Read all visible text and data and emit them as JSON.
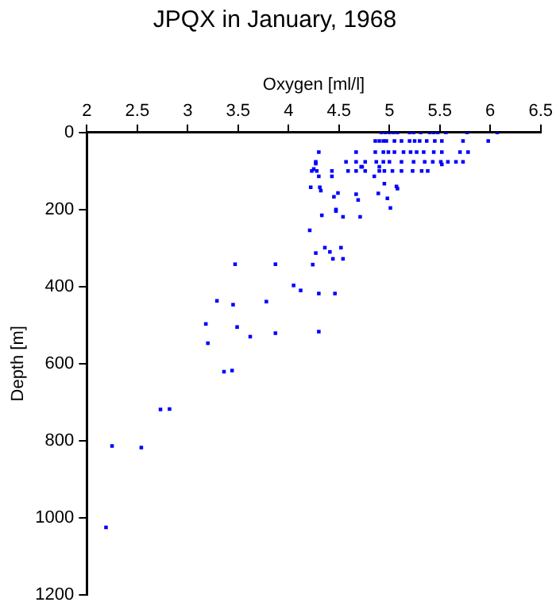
{
  "chart_data": {
    "type": "scatter",
    "title": "JPQX in January, 1968",
    "xlabel": "Oxygen [ml/l]",
    "ylabel": "Depth [m]",
    "xlim": [
      2,
      6.5
    ],
    "xticks": [
      2,
      2.5,
      3,
      3.5,
      4,
      4.5,
      5,
      5.5,
      6,
      6.5
    ],
    "ylim": [
      1200,
      0
    ],
    "yticks": [
      0,
      200,
      400,
      600,
      800,
      1000,
      1200
    ],
    "grid": false,
    "legend": false,
    "marker": "square",
    "series": [
      {
        "color": "#0000ff",
        "x": [
          4.92,
          4.96,
          5.0,
          5.04,
          5.08,
          5.2,
          5.24,
          5.31,
          5.4,
          5.44,
          5.48,
          5.56,
          5.77,
          6.07,
          4.86,
          4.9,
          4.94,
          4.97,
          5.05,
          5.12,
          5.2,
          5.25,
          5.3,
          5.37,
          5.45,
          5.52,
          5.73,
          5.98,
          4.3,
          4.67,
          4.86,
          4.94,
          4.99,
          5.05,
          5.14,
          5.21,
          5.27,
          5.34,
          5.44,
          5.52,
          5.7,
          5.78,
          4.27,
          4.57,
          4.67,
          4.76,
          4.87,
          4.94,
          5.0,
          5.12,
          5.24,
          5.35,
          5.43,
          5.51,
          5.58,
          5.66,
          5.73,
          4.23,
          4.28,
          4.43,
          4.59,
          4.67,
          4.76,
          4.9,
          4.95,
          5.03,
          5.12,
          5.23,
          5.32,
          5.38,
          4.3,
          4.85,
          4.9,
          4.72,
          5.52,
          4.27,
          4.25,
          4.73,
          4.95,
          5.07,
          5.08,
          4.22,
          4.31,
          4.32,
          4.43,
          4.45,
          4.49,
          4.67,
          4.69,
          4.89,
          4.98,
          5.01,
          4.47,
          4.47,
          4.33,
          4.54,
          4.71,
          4.21,
          4.52,
          4.36,
          4.27,
          4.41,
          4.44,
          4.54,
          3.47,
          3.87,
          4.24,
          4.05,
          4.12,
          4.3,
          4.46,
          3.29,
          3.45,
          3.78,
          3.18,
          3.49,
          3.62,
          3.87,
          4.3,
          3.2,
          3.36,
          3.44,
          2.73,
          2.82,
          2.25,
          2.54,
          2.19
        ],
        "values": [
          0,
          0,
          0,
          0,
          0,
          0,
          0,
          0,
          0,
          0,
          0,
          0,
          0,
          0,
          22,
          22,
          22,
          22,
          22,
          22,
          22,
          22,
          22,
          22,
          22,
          22,
          22,
          22,
          51,
          51,
          51,
          51,
          51,
          51,
          51,
          51,
          51,
          51,
          51,
          51,
          51,
          51,
          76,
          76,
          76,
          76,
          76,
          76,
          76,
          76,
          76,
          76,
          76,
          76,
          76,
          76,
          76,
          100,
          100,
          100,
          100,
          100,
          100,
          100,
          100,
          100,
          100,
          100,
          100,
          100,
          114,
          114,
          89,
          89,
          83,
          81,
          95,
          89,
          133,
          140,
          146,
          142,
          142,
          151,
          114,
          167,
          157,
          160,
          175,
          158,
          171,
          196,
          204,
          200,
          215,
          219,
          219,
          254,
          299,
          299,
          313,
          310,
          328,
          328,
          342,
          342,
          343,
          397,
          410,
          418,
          418,
          437,
          447,
          439,
          497,
          505,
          530,
          521,
          517,
          547,
          621,
          618,
          719,
          718,
          814,
          818,
          1025
        ]
      }
    ]
  }
}
